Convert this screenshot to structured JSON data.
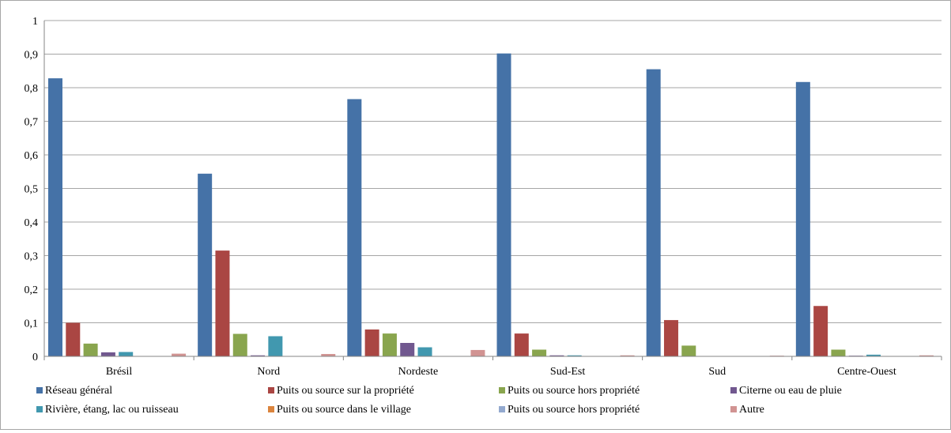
{
  "chart_data": {
    "type": "bar",
    "title": "",
    "xlabel": "",
    "ylabel": "",
    "ylim": [
      0,
      1
    ],
    "y_ticks": [
      "0",
      "0,1",
      "0,2",
      "0,3",
      "0,4",
      "0,5",
      "0,6",
      "0,7",
      "0,8",
      "0,9",
      "1"
    ],
    "y_tick_values": [
      0,
      0.1,
      0.2,
      0.3,
      0.4,
      0.5,
      0.6,
      0.7,
      0.8,
      0.9,
      1.0
    ],
    "grid": true,
    "legend_position": "bottom",
    "categories": [
      "Brésil",
      "Nord",
      "Nordeste",
      "Sud-Est",
      "Sud",
      "Centre-Ouest"
    ],
    "series": [
      {
        "name": "Réseau général",
        "color": "#4572a7",
        "values": [
          0.828,
          0.544,
          0.766,
          0.902,
          0.855,
          0.817
        ]
      },
      {
        "name": "Puits ou source sur la propriété",
        "color": "#aa4643",
        "values": [
          0.1,
          0.315,
          0.08,
          0.068,
          0.108,
          0.15
        ]
      },
      {
        "name": "Puits ou source hors propriété",
        "color": "#89a54e",
        "values": [
          0.038,
          0.067,
          0.068,
          0.02,
          0.032,
          0.02
        ]
      },
      {
        "name": "Citerne ou eau de pluie",
        "color": "#71588f",
        "values": [
          0.012,
          0.003,
          0.04,
          0.003,
          0.001,
          0.002
        ]
      },
      {
        "name": "Rivière, étang, lac ou ruisseau",
        "color": "#4198af",
        "values": [
          0.013,
          0.06,
          0.027,
          0.003,
          0.001,
          0.005
        ]
      },
      {
        "name": "Puits ou source dans le village",
        "color": "#db843d",
        "values": [
          0.001,
          0.001,
          0.001,
          0.001,
          0.0,
          0.001
        ]
      },
      {
        "name": "Puits ou source hors propriété",
        "color": "#93a9cf",
        "values": [
          0.001,
          0.001,
          0.001,
          0.001,
          0.001,
          0.001
        ]
      },
      {
        "name": "Autre",
        "color": "#d19392",
        "values": [
          0.008,
          0.007,
          0.019,
          0.003,
          0.002,
          0.003
        ]
      }
    ]
  }
}
